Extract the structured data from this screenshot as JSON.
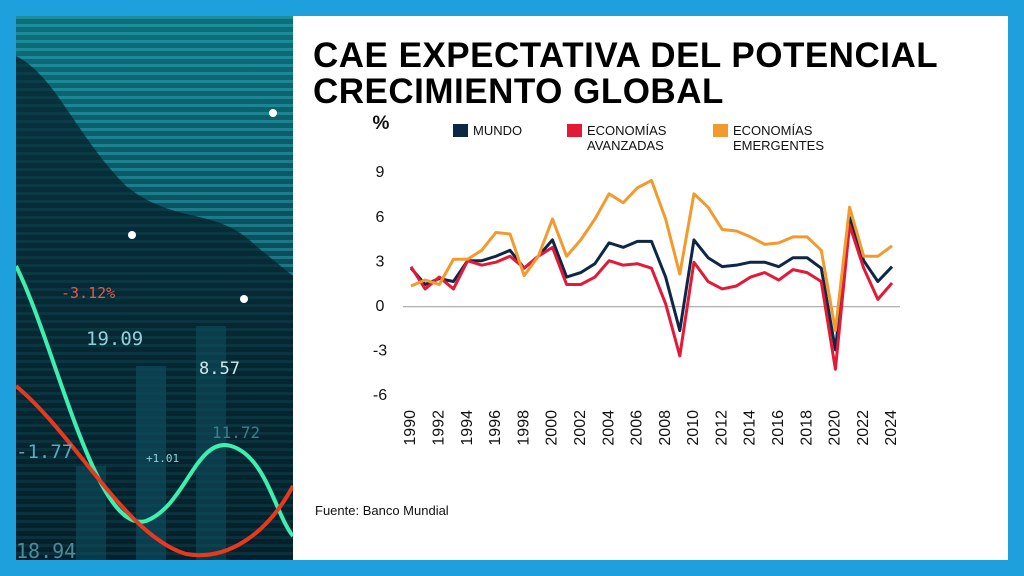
{
  "chart_data": {
    "type": "line",
    "title": "CAE EXPECTATIVA DEL POTENCIAL CRECIMIENTO GLOBAL",
    "y_label": "%",
    "source": "Fuente: Banco Mundial",
    "x": [
      1990,
      1991,
      1992,
      1993,
      1994,
      1995,
      1996,
      1997,
      1998,
      1999,
      2000,
      2001,
      2002,
      2003,
      2004,
      2005,
      2006,
      2007,
      2008,
      2009,
      2010,
      2011,
      2012,
      2013,
      2014,
      2015,
      2016,
      2017,
      2018,
      2019,
      2020,
      2021,
      2022,
      2023,
      2024
    ],
    "xlim": [
      1990,
      2024
    ],
    "xticks": [
      1990,
      1992,
      1994,
      1996,
      1998,
      2000,
      2002,
      2004,
      2006,
      2008,
      2010,
      2012,
      2014,
      2016,
      2018,
      2020,
      2022,
      2024
    ],
    "ylim": [
      -6,
      9
    ],
    "yticks": [
      9,
      6,
      3,
      0,
      -3,
      -6
    ],
    "series": [
      {
        "name": "MUNDO",
        "color": "#0d2747",
        "values": [
          2.6,
          1.5,
          1.9,
          1.7,
          3.1,
          3.1,
          3.4,
          3.8,
          2.6,
          3.4,
          4.5,
          2.0,
          2.3,
          2.9,
          4.3,
          4.0,
          4.4,
          4.4,
          2.0,
          -1.6,
          4.5,
          3.3,
          2.7,
          2.8,
          3.0,
          3.0,
          2.7,
          3.3,
          3.3,
          2.6,
          -2.9,
          6.0,
          3.1,
          1.7,
          2.7
        ]
      },
      {
        "name": "ECONOMÍAS AVANZADAS",
        "color": "#e31937",
        "values": [
          2.7,
          1.2,
          2.0,
          1.2,
          3.1,
          2.8,
          3.0,
          3.4,
          2.6,
          3.4,
          4.0,
          1.5,
          1.5,
          2.0,
          3.1,
          2.8,
          2.9,
          2.6,
          0.2,
          -3.3,
          3.0,
          1.7,
          1.2,
          1.4,
          2.0,
          2.3,
          1.8,
          2.5,
          2.3,
          1.7,
          -4.2,
          5.5,
          2.6,
          0.5,
          1.6
        ]
      },
      {
        "name": "ECONOMÍAS EMERGENTES",
        "color": "#f39a2e",
        "values": [
          1.4,
          1.8,
          1.5,
          3.2,
          3.2,
          3.8,
          5.0,
          4.9,
          2.1,
          3.4,
          5.9,
          3.4,
          4.5,
          5.9,
          7.6,
          7.0,
          8.0,
          8.5,
          5.9,
          2.2,
          7.6,
          6.7,
          5.2,
          5.1,
          4.7,
          4.2,
          4.3,
          4.7,
          4.7,
          3.8,
          -1.6,
          6.7,
          3.4,
          3.4,
          4.1
        ]
      }
    ]
  },
  "background_image": {
    "texts": [
      "-3.12%",
      "19.09",
      "8.57",
      "-1.77",
      "+1.01",
      "11.72",
      "18.94"
    ]
  }
}
